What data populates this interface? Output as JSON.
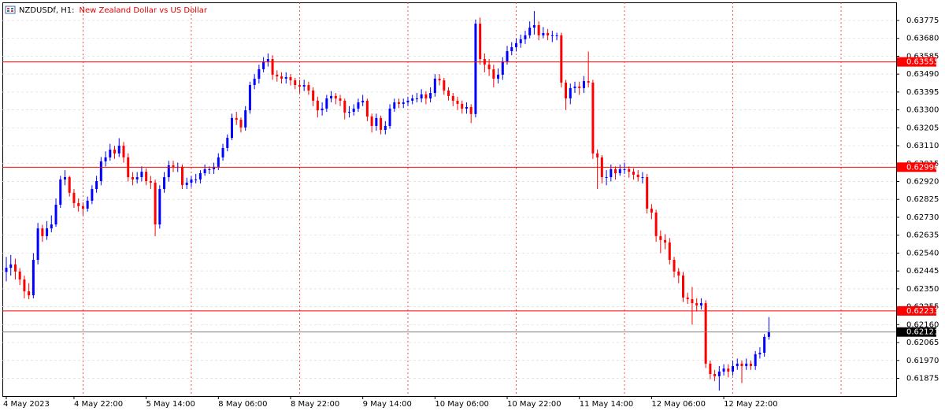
{
  "chart_data": {
    "type": "candlestick",
    "symbol": "NZDUSDf, H1:",
    "description": "New Zealand Dollar vs US Dollar",
    "up_color": "#0000ff",
    "down_color": "#ff0000",
    "grid": true,
    "ylim": [
      0.61781,
      0.63871
    ],
    "yticks": [
      0.63775,
      {
        "value": 0.6368,
        "label": "0.63680"
      },
      0.63585,
      {
        "value": 0.6349,
        "label": "0.63490"
      },
      0.63395,
      {
        "value": 0.633,
        "label": "0.63300"
      },
      0.63205,
      {
        "value": 0.6311,
        "label": "0.63110"
      },
      0.63015,
      {
        "value": 0.6292,
        "label": "0.62920"
      },
      0.62825,
      {
        "value": 0.6273,
        "label": "0.62730"
      },
      0.62635,
      {
        "value": 0.6254,
        "label": "0.62540"
      },
      0.62445,
      {
        "value": 0.6235,
        "label": "0.62350"
      },
      0.62255,
      {
        "value": 0.6216,
        "label": "0.62160"
      },
      0.62065,
      {
        "value": 0.6197,
        "label": "0.61970"
      },
      0.61875
    ],
    "levels": [
      {
        "value": 0.63555,
        "color": "#ff0000"
      },
      {
        "value": 0.62996,
        "color": "#ff0000"
      },
      {
        "value": 0.62233,
        "color": "#ff0000"
      }
    ],
    "last_price": {
      "value": 0.62121,
      "color": "#808080"
    },
    "categories": [
      "4 May 2023",
      null,
      null,
      null,
      null,
      null,
      null,
      null,
      null,
      null,
      null,
      null,
      null,
      null,
      null,
      "4 May 22:00",
      null,
      null,
      null,
      null,
      null,
      null,
      null,
      null,
      null,
      null,
      null,
      null,
      null,
      null,
      null,
      "5 May 14:00",
      null,
      null,
      null,
      null,
      null,
      null,
      null,
      null,
      null,
      null,
      null,
      null,
      null,
      null,
      null,
      "8 May 06:00",
      null,
      null,
      null,
      null,
      null,
      null,
      null,
      null,
      null,
      null,
      null,
      null,
      null,
      null,
      null,
      "8 May 22:00",
      null,
      null,
      null,
      null,
      null,
      null,
      null,
      null,
      null,
      null,
      null,
      null,
      null,
      null,
      null,
      "9 May 14:00",
      null,
      null,
      null,
      null,
      null,
      null,
      null,
      null,
      null,
      null,
      null,
      null,
      null,
      null,
      null,
      "10 May 06:00",
      null,
      null,
      null,
      null,
      null,
      null,
      null,
      null,
      null,
      null,
      null,
      null,
      null,
      null,
      null,
      "10 May 22:00",
      null,
      null,
      null,
      null,
      null,
      null,
      null,
      null,
      null,
      null,
      null,
      null,
      null,
      null,
      null,
      "11 May 14:00",
      null,
      null,
      null,
      null,
      null,
      null,
      null,
      null,
      null,
      null,
      null,
      null,
      null,
      null,
      null,
      "12 May 06:00",
      null,
      null,
      null,
      null,
      null,
      null,
      null,
      null,
      null,
      null,
      null,
      null,
      null,
      null,
      null,
      "12 May 22:00",
      null,
      null,
      null,
      null,
      null,
      null,
      null,
      null,
      null,
      null
    ],
    "ohlc": [
      [
        0.6244,
        0.6252,
        0.6239,
        0.62462
      ],
      [
        0.62462,
        0.6253,
        0.6242,
        0.6248
      ],
      [
        0.6248,
        0.6251,
        0.624,
        0.62442
      ],
      [
        0.62442,
        0.6246,
        0.6237,
        0.624
      ],
      [
        0.624,
        0.6242,
        0.623,
        0.62337
      ],
      [
        0.62337,
        0.6238,
        0.62295,
        0.62316
      ],
      [
        0.62316,
        0.6254,
        0.623,
        0.62504
      ],
      [
        0.62504,
        0.627,
        0.6248,
        0.62671
      ],
      [
        0.62671,
        0.6269,
        0.626,
        0.6263
      ],
      [
        0.6263,
        0.6271,
        0.6261,
        0.62671
      ],
      [
        0.62671,
        0.6274,
        0.6265,
        0.62692
      ],
      [
        0.62692,
        0.6283,
        0.6268,
        0.62797
      ],
      [
        0.62797,
        0.6295,
        0.6278,
        0.62931
      ],
      [
        0.62931,
        0.6298,
        0.629,
        0.62943
      ],
      [
        0.62943,
        0.6295,
        0.6284,
        0.6286
      ],
      [
        0.6286,
        0.6288,
        0.6278,
        0.62805
      ],
      [
        0.62805,
        0.6283,
        0.6276,
        0.62789
      ],
      [
        0.62789,
        0.6281,
        0.6274,
        0.62776
      ],
      [
        0.62776,
        0.6284,
        0.6276,
        0.62818
      ],
      [
        0.62818,
        0.629,
        0.628,
        0.6288
      ],
      [
        0.6288,
        0.6295,
        0.6286,
        0.62922
      ],
      [
        0.62922,
        0.6305,
        0.629,
        0.63027
      ],
      [
        0.63027,
        0.6308,
        0.63,
        0.63048
      ],
      [
        0.63048,
        0.6312,
        0.6303,
        0.63089
      ],
      [
        0.63089,
        0.6311,
        0.6304,
        0.63069
      ],
      [
        0.63069,
        0.6315,
        0.6305,
        0.6311
      ],
      [
        0.6311,
        0.6313,
        0.6302,
        0.63048
      ],
      [
        0.63048,
        0.6307,
        0.6292,
        0.62943
      ],
      [
        0.62943,
        0.6297,
        0.629,
        0.62931
      ],
      [
        0.62931,
        0.6297,
        0.6291,
        0.62943
      ],
      [
        0.62943,
        0.63,
        0.6292,
        0.62972
      ],
      [
        0.62972,
        0.6299,
        0.629,
        0.62922
      ],
      [
        0.62922,
        0.6295,
        0.6288,
        0.62914
      ],
      [
        0.62914,
        0.6293,
        0.6263,
        0.62692
      ],
      [
        0.62692,
        0.629,
        0.6267,
        0.6288
      ],
      [
        0.6288,
        0.6297,
        0.6286,
        0.62943
      ],
      [
        0.62943,
        0.6303,
        0.6292,
        0.63006
      ],
      [
        0.63006,
        0.6303,
        0.6297,
        0.62998
      ],
      [
        0.62998,
        0.6302,
        0.6297,
        0.62998
      ],
      [
        0.62998,
        0.6301,
        0.6288,
        0.62901
      ],
      [
        0.62901,
        0.6294,
        0.6288,
        0.62914
      ],
      [
        0.62914,
        0.6295,
        0.6289,
        0.62931
      ],
      [
        0.62931,
        0.6296,
        0.6291,
        0.62931
      ],
      [
        0.62931,
        0.6298,
        0.6291,
        0.62964
      ],
      [
        0.62964,
        0.6301,
        0.6295,
        0.62985
      ],
      [
        0.62985,
        0.63,
        0.6296,
        0.62985
      ],
      [
        0.62985,
        0.6302,
        0.6296,
        0.62998
      ],
      [
        0.62998,
        0.6307,
        0.6298,
        0.63048
      ],
      [
        0.63048,
        0.6312,
        0.6303,
        0.63098
      ],
      [
        0.63098,
        0.6317,
        0.6308,
        0.63152
      ],
      [
        0.63152,
        0.6328,
        0.6314,
        0.63257
      ],
      [
        0.63257,
        0.6329,
        0.6322,
        0.63248
      ],
      [
        0.63248,
        0.6326,
        0.6318,
        0.63207
      ],
      [
        0.63207,
        0.6332,
        0.6319,
        0.63298
      ],
      [
        0.63298,
        0.6345,
        0.6328,
        0.63432
      ],
      [
        0.63432,
        0.6349,
        0.6341,
        0.63466
      ],
      [
        0.63466,
        0.6354,
        0.6344,
        0.63516
      ],
      [
        0.63516,
        0.6358,
        0.635,
        0.63558
      ],
      [
        0.63558,
        0.636,
        0.6353,
        0.6357
      ],
      [
        0.6357,
        0.6359,
        0.6346,
        0.63487
      ],
      [
        0.63487,
        0.6351,
        0.6345,
        0.63478
      ],
      [
        0.63478,
        0.635,
        0.6344,
        0.63466
      ],
      [
        0.63466,
        0.635,
        0.6344,
        0.63474
      ],
      [
        0.63474,
        0.6349,
        0.6343,
        0.63457
      ],
      [
        0.63457,
        0.6347,
        0.6341,
        0.63432
      ],
      [
        0.63432,
        0.6346,
        0.6339,
        0.63424
      ],
      [
        0.63424,
        0.6346,
        0.634,
        0.63432
      ],
      [
        0.63432,
        0.6345,
        0.6338,
        0.63403
      ],
      [
        0.63403,
        0.6342,
        0.6332,
        0.63349
      ],
      [
        0.63349,
        0.6337,
        0.6326,
        0.63298
      ],
      [
        0.63298,
        0.6334,
        0.6327,
        0.63307
      ],
      [
        0.63307,
        0.6338,
        0.6329,
        0.63361
      ],
      [
        0.63361,
        0.634,
        0.6334,
        0.63374
      ],
      [
        0.63374,
        0.6339,
        0.6333,
        0.63361
      ],
      [
        0.63361,
        0.6338,
        0.6332,
        0.63349
      ],
      [
        0.63349,
        0.6336,
        0.6325,
        0.63286
      ],
      [
        0.63286,
        0.6332,
        0.6326,
        0.6329
      ],
      [
        0.6329,
        0.6333,
        0.6327,
        0.63307
      ],
      [
        0.63307,
        0.6336,
        0.6329,
        0.6334
      ],
      [
        0.6334,
        0.6338,
        0.6332,
        0.63349
      ],
      [
        0.63349,
        0.6336,
        0.6324,
        0.63265
      ],
      [
        0.63265,
        0.6328,
        0.6318,
        0.63215
      ],
      [
        0.63215,
        0.6328,
        0.6319,
        0.63257
      ],
      [
        0.63257,
        0.6327,
        0.6317,
        0.63194
      ],
      [
        0.63194,
        0.6324,
        0.6317,
        0.63215
      ],
      [
        0.63215,
        0.6333,
        0.632,
        0.63307
      ],
      [
        0.63307,
        0.6336,
        0.6329,
        0.6334
      ],
      [
        0.6334,
        0.6336,
        0.6331,
        0.63332
      ],
      [
        0.63332,
        0.6336,
        0.6331,
        0.6334
      ],
      [
        0.6334,
        0.6337,
        0.6332,
        0.63349
      ],
      [
        0.63349,
        0.6338,
        0.6333,
        0.63361
      ],
      [
        0.63361,
        0.6339,
        0.6334,
        0.63361
      ],
      [
        0.63361,
        0.6341,
        0.6334,
        0.63382
      ],
      [
        0.63382,
        0.634,
        0.6333,
        0.63361
      ],
      [
        0.63361,
        0.6342,
        0.6334,
        0.6339
      ],
      [
        0.6339,
        0.6349,
        0.6337,
        0.63466
      ],
      [
        0.63466,
        0.6349,
        0.6343,
        0.63457
      ],
      [
        0.63457,
        0.6347,
        0.6338,
        0.63403
      ],
      [
        0.63403,
        0.6342,
        0.6335,
        0.63374
      ],
      [
        0.63374,
        0.6339,
        0.6332,
        0.63349
      ],
      [
        0.63349,
        0.6337,
        0.633,
        0.63332
      ],
      [
        0.63332,
        0.6335,
        0.6328,
        0.63307
      ],
      [
        0.63307,
        0.6334,
        0.6328,
        0.63315
      ],
      [
        0.63315,
        0.6333,
        0.6323,
        0.63278
      ],
      [
        0.63278,
        0.6378,
        0.6326,
        0.63758
      ],
      [
        0.63758,
        0.6379,
        0.6354,
        0.6357
      ],
      [
        0.6357,
        0.636,
        0.635,
        0.63541
      ],
      [
        0.63541,
        0.6357,
        0.6348,
        0.63516
      ],
      [
        0.63516,
        0.6354,
        0.6342,
        0.63466
      ],
      [
        0.63466,
        0.6352,
        0.6344,
        0.63487
      ],
      [
        0.63487,
        0.6358,
        0.6346,
        0.63558
      ],
      [
        0.63558,
        0.6364,
        0.6354,
        0.63612
      ],
      [
        0.63612,
        0.6366,
        0.6359,
        0.63633
      ],
      [
        0.63633,
        0.6368,
        0.6361,
        0.63654
      ],
      [
        0.63654,
        0.637,
        0.6363,
        0.63675
      ],
      [
        0.63675,
        0.6372,
        0.6365,
        0.63696
      ],
      [
        0.63696,
        0.6377,
        0.6368,
        0.63737
      ],
      [
        0.63737,
        0.63825,
        0.637,
        0.6375
      ],
      [
        0.6375,
        0.6377,
        0.6367,
        0.63696
      ],
      [
        0.63696,
        0.6374,
        0.6368,
        0.63708
      ],
      [
        0.63708,
        0.6373,
        0.6367,
        0.63696
      ],
      [
        0.63696,
        0.6372,
        0.6366,
        0.63696
      ],
      [
        0.63696,
        0.6371,
        0.6367,
        0.63696
      ],
      [
        0.63696,
        0.6371,
        0.6342,
        0.63445
      ],
      [
        0.63445,
        0.6346,
        0.633,
        0.63361
      ],
      [
        0.63361,
        0.6344,
        0.6333,
        0.63416
      ],
      [
        0.63416,
        0.6345,
        0.6339,
        0.63424
      ],
      [
        0.63424,
        0.6345,
        0.6338,
        0.63416
      ],
      [
        0.63416,
        0.6348,
        0.6339,
        0.63453
      ],
      [
        0.63453,
        0.6361,
        0.6342,
        0.63445
      ],
      [
        0.63445,
        0.6346,
        0.6304,
        0.63069
      ],
      [
        0.63069,
        0.6309,
        0.6288,
        0.63048
      ],
      [
        0.63048,
        0.6306,
        0.6291,
        0.62943
      ],
      [
        0.62943,
        0.6298,
        0.629,
        0.62943
      ],
      [
        0.62943,
        0.6301,
        0.6292,
        0.62985
      ],
      [
        0.62985,
        0.63,
        0.6293,
        0.62964
      ],
      [
        0.62964,
        0.6301,
        0.6295,
        0.62985
      ],
      [
        0.62985,
        0.6302,
        0.6296,
        0.62985
      ],
      [
        0.62985,
        0.63,
        0.6294,
        0.62972
      ],
      [
        0.62972,
        0.6299,
        0.6293,
        0.62956
      ],
      [
        0.62956,
        0.6298,
        0.6292,
        0.62943
      ],
      [
        0.62943,
        0.6297,
        0.6291,
        0.62943
      ],
      [
        0.62943,
        0.6296,
        0.6275,
        0.62776
      ],
      [
        0.62776,
        0.628,
        0.6272,
        0.62755
      ],
      [
        0.62755,
        0.6277,
        0.626,
        0.6263
      ],
      [
        0.6263,
        0.6266,
        0.6254,
        0.62609
      ],
      [
        0.62609,
        0.6264,
        0.6256,
        0.62596
      ],
      [
        0.62596,
        0.6262,
        0.6248,
        0.62504
      ],
      [
        0.62504,
        0.6252,
        0.6241,
        0.62442
      ],
      [
        0.62442,
        0.6246,
        0.6238,
        0.62421
      ],
      [
        0.62421,
        0.6244,
        0.6228,
        0.62304
      ],
      [
        0.62304,
        0.6233,
        0.6227,
        0.62295
      ],
      [
        0.62295,
        0.6236,
        0.6216,
        0.62274
      ],
      [
        0.62274,
        0.623,
        0.6223,
        0.62262
      ],
      [
        0.62262,
        0.623,
        0.6224,
        0.62274
      ],
      [
        0.62274,
        0.6229,
        0.6193,
        0.61953
      ],
      [
        0.61953,
        0.6197,
        0.6187,
        0.61898
      ],
      [
        0.61898,
        0.6192,
        0.6186,
        0.61886
      ],
      [
        0.61886,
        0.6194,
        0.6181,
        0.61911
      ],
      [
        0.61911,
        0.6195,
        0.6189,
        0.61927
      ],
      [
        0.61927,
        0.6195,
        0.6188,
        0.61911
      ],
      [
        0.61911,
        0.6197,
        0.6189,
        0.6194
      ],
      [
        0.6194,
        0.6198,
        0.6192,
        0.61953
      ],
      [
        0.61953,
        0.6197,
        0.6185,
        0.6194
      ],
      [
        0.6194,
        0.6198,
        0.6192,
        0.61953
      ],
      [
        0.61953,
        0.6197,
        0.6192,
        0.6194
      ],
      [
        0.6194,
        0.6202,
        0.6192,
        0.62003
      ],
      [
        0.62003,
        0.6204,
        0.6198,
        0.62011
      ],
      [
        0.62011,
        0.6211,
        0.6199,
        0.62095
      ],
      [
        0.62095,
        0.622,
        0.6208,
        0.62121
      ]
    ]
  }
}
